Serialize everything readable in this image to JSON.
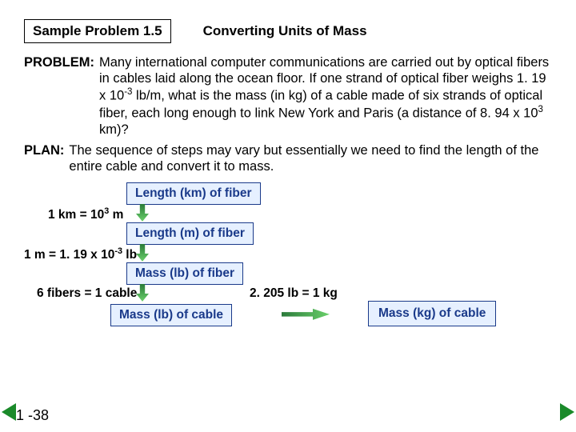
{
  "header": {
    "sample_label": "Sample Problem 1.5",
    "title": "Converting Units of Mass"
  },
  "problem": {
    "label": "PROBLEM:",
    "text_html": "Many international computer communications are carried out by optical fibers in cables laid along the ocean floor. If one strand of optical fiber weighs 1. 19 x 10<sup>-3</sup> lb/m, what is the mass (in kg) of a cable made of six strands of optical fiber, each long enough to link New York and Paris (a distance of 8. 94 x 10<sup>3</sup> km)?"
  },
  "plan": {
    "label": "PLAN:",
    "text": "The sequence of steps may vary but essentially we need to find the length of the entire cable and convert it to mass."
  },
  "flow": {
    "boxes": {
      "b1": "Length (km) of fiber",
      "b2": "Length (m) of fiber",
      "b3": "Mass (lb) of fiber",
      "b4": "Mass (lb) of cable",
      "b5": "Mass (kg) of cable"
    },
    "conversions": {
      "c1_html": "1 km = 10<sup>3</sup> m",
      "c2_html": "1 m = 1. 19 x 10<sup>-3</sup> lb",
      "c3": "6 fibers = 1 cable",
      "c4": "2. 205 lb = 1 kg"
    }
  },
  "page": "1 -38",
  "colors": {
    "box_border": "#1a3a8a",
    "box_fill": "#e6f0ff",
    "arrow": "#2a7a3a",
    "nav_tri": "#1a8a2a"
  }
}
